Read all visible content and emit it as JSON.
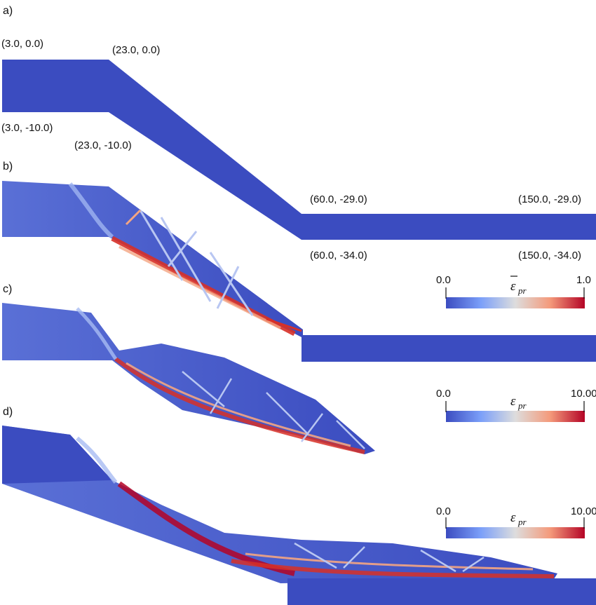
{
  "panels": {
    "a": "a)",
    "b": "b)",
    "c": "c)",
    "d": "d)"
  },
  "coords": {
    "top_left": "(3.0, 0.0)",
    "crest_top": "(23.0, 0.0)",
    "bottom_left": "(3.0, -10.0)",
    "crest_bottom": "(23.0, -10.0)",
    "toe_top": "(60.0, -29.0)",
    "right_top": "(150.0, -29.0)",
    "toe_bottom": "(60.0, -34.0)",
    "right_bottom": "(150.0, -34.0)"
  },
  "colorbars": [
    {
      "min": "0.0",
      "max": "1.0",
      "symbol": "ε",
      "subscript": "pr",
      "overbar": true
    },
    {
      "min": "0.0",
      "max": "10.00",
      "symbol": "ε",
      "subscript": "pr",
      "overbar": false
    },
    {
      "min": "0.0",
      "max": "10.00",
      "symbol": "ε",
      "subscript": "pr",
      "overbar": false
    }
  ],
  "colors": {
    "domain_blue": "#3b4cc0",
    "mid_white": "#dddddd",
    "high_red": "#b40426"
  }
}
